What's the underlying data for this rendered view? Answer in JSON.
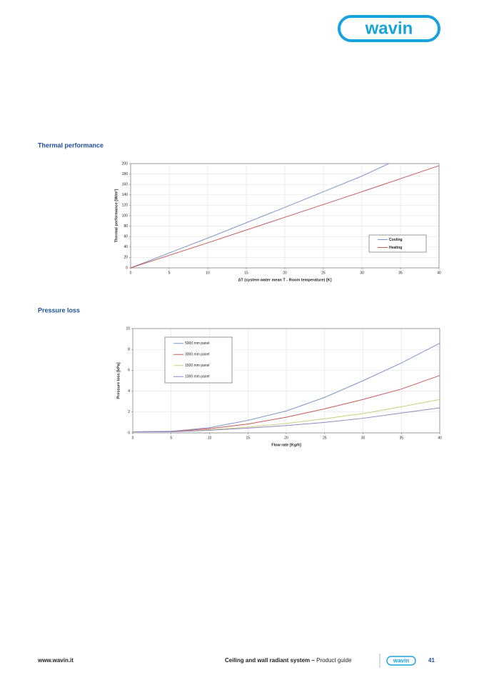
{
  "logo": "wavin",
  "chart_data": [
    {
      "type": "line",
      "title": "Thermal performance",
      "xlabel": "ΔT (system water mean T - Room temperature) [K]",
      "ylabel": "Thermal performance [W/m²]",
      "xlim": [
        0,
        40
      ],
      "xticks": [
        0,
        5,
        10,
        15,
        20,
        25,
        30,
        35,
        40
      ],
      "ylim": [
        0,
        200
      ],
      "yticks": [
        0,
        20,
        40,
        60,
        80,
        100,
        120,
        140,
        160,
        180,
        200
      ],
      "grid": true,
      "legend": "lower right",
      "series": [
        {
          "name": "Cooling",
          "color": "#7b97cc",
          "x": [
            0,
            10,
            20,
            30,
            33.5
          ],
          "values": [
            0,
            57,
            116,
            176,
            200
          ]
        },
        {
          "name": "Heating",
          "color": "#c85a57",
          "x": [
            0,
            10,
            20,
            30,
            40
          ],
          "values": [
            0,
            48,
            97,
            146,
            196
          ]
        }
      ]
    },
    {
      "type": "line",
      "title": "Pressure loss",
      "xlabel": "Flow rate [Kg/h]",
      "ylabel": "Pressure loss [kPa]",
      "xlim": [
        0,
        40
      ],
      "xticks": [
        0,
        5,
        10,
        15,
        20,
        25,
        30,
        35,
        40
      ],
      "ylim": [
        0,
        10
      ],
      "yticks": [
        0,
        2,
        4,
        6,
        8,
        10
      ],
      "grid": true,
      "legend": "upper left",
      "series": [
        {
          "name": "5000 mm panel",
          "color": "#7b97cc",
          "x": [
            0,
            5,
            10,
            15,
            20,
            25,
            30,
            35,
            40
          ],
          "values": [
            0.1,
            0.15,
            0.5,
            1.2,
            2.1,
            3.4,
            5.0,
            6.7,
            8.6
          ]
        },
        {
          "name": "3000 mm panel",
          "color": "#c85a57",
          "x": [
            0,
            5,
            10,
            15,
            20,
            25,
            30,
            35,
            40
          ],
          "values": [
            0.1,
            0.12,
            0.4,
            0.85,
            1.5,
            2.3,
            3.2,
            4.2,
            5.5
          ]
        },
        {
          "name": "1500 mm panel",
          "color": "#c9cf7f",
          "x": [
            0,
            5,
            10,
            15,
            20,
            25,
            30,
            35,
            40
          ],
          "values": [
            0.1,
            0.1,
            0.3,
            0.55,
            0.9,
            1.35,
            1.85,
            2.5,
            3.2
          ]
        },
        {
          "name": "1000 mm panel",
          "color": "#9486c4",
          "x": [
            0,
            5,
            10,
            15,
            20,
            25,
            30,
            35,
            40
          ],
          "values": [
            0.1,
            0.1,
            0.25,
            0.45,
            0.7,
            1.0,
            1.4,
            1.9,
            2.4
          ]
        }
      ]
    }
  ],
  "footer": {
    "website": "www.wavin.it",
    "title_bold": "Ceiling and wall radiant system –",
    "title_rest": "Product guide",
    "logo": "wavin",
    "page": "41"
  }
}
